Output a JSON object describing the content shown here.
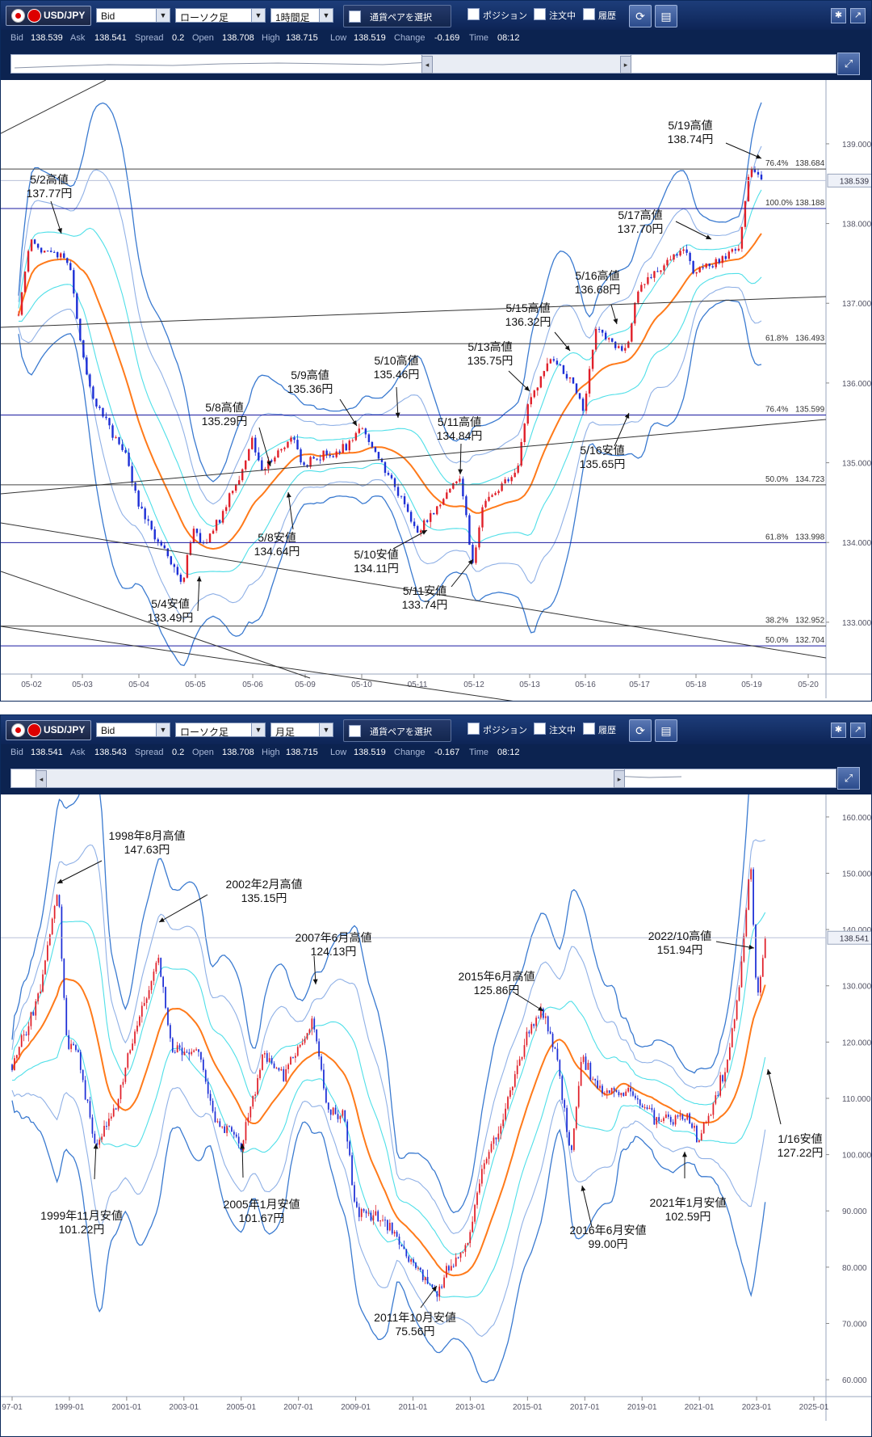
{
  "top": {
    "toolbar": {
      "pair": "USD/JPY",
      "price_type": "Bid",
      "chart_type": "ローソク足",
      "timeframe": "1時間足",
      "pair_select": "通貨ペアを選択",
      "position": "ポジション",
      "orders": "注文中",
      "history": "履歴"
    },
    "info": {
      "bid_k": "Bid",
      "bid": "138.539",
      "ask_k": "Ask",
      "ask": "138.541",
      "spread_k": "Spread",
      "spread": "0.2",
      "open_k": "Open",
      "open": "138.708",
      "high_k": "High",
      "high": "138.715",
      "low_k": "Low",
      "low": "138.519",
      "change_k": "Change",
      "change": "-0.169",
      "time_k": "Time",
      "time": "08:12"
    },
    "current_price": "138.539"
  },
  "bottom": {
    "toolbar": {
      "pair": "USD/JPY",
      "price_type": "Bid",
      "chart_type": "ローソク足",
      "timeframe": "月足",
      "pair_select": "通貨ペアを選択",
      "position": "ポジション",
      "orders": "注文中",
      "history": "履歴"
    },
    "info": {
      "bid_k": "Bid",
      "bid": "138.541",
      "ask_k": "Ask",
      "ask": "138.543",
      "spread_k": "Spread",
      "spread": "0.2",
      "open_k": "Open",
      "open": "138.708",
      "high_k": "High",
      "high": "138.715",
      "low_k": "Low",
      "low": "138.519",
      "change_k": "Change",
      "change": "-0.167",
      "time_k": "Time",
      "time": "08:12"
    },
    "current_price": "138.541"
  },
  "colors": {
    "toolbar": "#0c2350",
    "up": "#e0202a",
    "down": "#1d2fd6",
    "ma": "#ff7a1a",
    "band_outer": "#3a7ad0",
    "band_mid": "#8fb0e6",
    "band_inner": "#4fdfe8",
    "fib": "#444444",
    "fib_blue": "#1a1aa0"
  },
  "chart_data": [
    {
      "type": "candlestick",
      "timeframe": "1時間足",
      "x_ticks": [
        "05-02",
        "05-03",
        "05-04",
        "05-05",
        "05-06",
        "05-09",
        "05-10",
        "05-11",
        "05-12",
        "05-13",
        "05-16",
        "05-17",
        "05-18",
        "05-19",
        "05-20"
      ],
      "y_ticks": [
        "133.000",
        "134.000",
        "135.000",
        "136.000",
        "137.000",
        "138.000",
        "139.000"
      ],
      "ylim": [
        132.35,
        139.8
      ],
      "fib_levels": [
        {
          "pct": "76.4%",
          "value": "138.684",
          "color": "gray"
        },
        {
          "pct": "100.0%",
          "value": "138.188",
          "color": "blue"
        },
        {
          "pct": "61.8%",
          "value": "136.493",
          "color": "gray"
        },
        {
          "pct": "76.4%",
          "value": "135.599",
          "color": "blue"
        },
        {
          "pct": "50.0%",
          "value": "134.723",
          "color": "gray"
        },
        {
          "pct": "61.8%",
          "value": "133.998",
          "color": "blue"
        },
        {
          "pct": "38.2%",
          "value": "132.952",
          "color": "gray"
        },
        {
          "pct": "50.0%",
          "value": "132.704",
          "color": "blue"
        }
      ],
      "path": [
        [
          "05-02",
          136.85
        ],
        [
          "05-02",
          137.77
        ],
        [
          "05-03",
          137.5
        ],
        [
          "05-03",
          136.5
        ],
        [
          "05-03",
          135.8
        ],
        [
          "05-04",
          135.1
        ],
        [
          "05-04",
          134.5
        ],
        [
          "05-05",
          133.49
        ],
        [
          "05-05",
          134.2
        ],
        [
          "05-05",
          133.95
        ],
        [
          "05-06",
          134.8
        ],
        [
          "05-06",
          135.29
        ],
        [
          "05-06",
          134.9
        ],
        [
          "05-09",
          135.36
        ],
        [
          "05-09",
          135.0
        ],
        [
          "05-10",
          135.2
        ],
        [
          "05-10",
          135.46
        ],
        [
          "05-11",
          134.5
        ],
        [
          "05-11",
          134.11
        ],
        [
          "05-11",
          134.3
        ],
        [
          "05-12",
          134.84
        ],
        [
          "05-12",
          133.74
        ],
        [
          "05-12",
          134.5
        ],
        [
          "05-13",
          134.9
        ],
        [
          "05-13",
          135.75
        ],
        [
          "05-13",
          136.0
        ],
        [
          "05-13",
          136.32
        ],
        [
          "05-16",
          136.05
        ],
        [
          "05-16",
          135.65
        ],
        [
          "05-16",
          136.68
        ],
        [
          "05-17",
          136.4
        ],
        [
          "05-17",
          137.2
        ],
        [
          "05-18",
          137.7
        ],
        [
          "05-18",
          137.4
        ],
        [
          "05-19",
          137.7
        ],
        [
          "05-19",
          138.74
        ],
        [
          "05-19",
          138.54
        ]
      ],
      "annotations": [
        {
          "text": "5/2高値",
          "value": "137.77円"
        },
        {
          "text": "5/4安値",
          "value": "133.49円"
        },
        {
          "text": "5/8高値",
          "value": "135.29円"
        },
        {
          "text": "5/8安値",
          "value": "134.64円"
        },
        {
          "text": "5/9高値",
          "value": "135.36円"
        },
        {
          "text": "5/10高値",
          "value": "135.46円"
        },
        {
          "text": "5/10安値",
          "value": "134.11円"
        },
        {
          "text": "5/11高値",
          "value": "134.84円"
        },
        {
          "text": "5/11安値",
          "value": "133.74円"
        },
        {
          "text": "5/13高値",
          "value": "135.75円"
        },
        {
          "text": "5/15高値",
          "value": "136.32円"
        },
        {
          "text": "5/16安値",
          "value": "135.65円"
        },
        {
          "text": "5/16高値",
          "value": "136.68円"
        },
        {
          "text": "5/17高値",
          "value": "137.70円"
        },
        {
          "text": "5/19高値",
          "value": "138.74円"
        }
      ]
    },
    {
      "type": "candlestick",
      "timeframe": "月足",
      "x_ticks": [
        "97-01",
        "1999-01",
        "2001-01",
        "2003-01",
        "2005-01",
        "2007-01",
        "2009-01",
        "2011-01",
        "2013-01",
        "2015-01",
        "2017-01",
        "2019-01",
        "2021-01",
        "2023-01",
        "2025-01"
      ],
      "y_ticks": [
        "60.000",
        "70.000",
        "80.000",
        "90.000",
        "100.000",
        "110.000",
        "120.000",
        "130.000",
        "140.000",
        "150.000",
        "160.000"
      ],
      "ylim": [
        57,
        164
      ],
      "path": [
        [
          1997.0,
          116
        ],
        [
          1997.6,
          124
        ],
        [
          1998.0,
          130
        ],
        [
          1998.6,
          147.63
        ],
        [
          1998.9,
          120
        ],
        [
          1999.3,
          118
        ],
        [
          1999.9,
          101.22
        ],
        [
          2000.6,
          108
        ],
        [
          2001.2,
          120
        ],
        [
          2002.1,
          135.15
        ],
        [
          2002.6,
          118
        ],
        [
          2003.5,
          118
        ],
        [
          2004.1,
          106
        ],
        [
          2004.9,
          103
        ],
        [
          2005.0,
          101.67
        ],
        [
          2005.8,
          118
        ],
        [
          2006.5,
          114
        ],
        [
          2007.5,
          124.13
        ],
        [
          2008.0,
          108
        ],
        [
          2008.6,
          107
        ],
        [
          2009.0,
          90
        ],
        [
          2009.8,
          89
        ],
        [
          2010.5,
          85
        ],
        [
          2010.9,
          81
        ],
        [
          2011.8,
          75.56
        ],
        [
          2012.3,
          80
        ],
        [
          2012.9,
          84
        ],
        [
          2013.4,
          98
        ],
        [
          2014.0,
          104
        ],
        [
          2014.9,
          120
        ],
        [
          2015.5,
          125.86
        ],
        [
          2016.0,
          118
        ],
        [
          2016.5,
          99.0
        ],
        [
          2016.9,
          117
        ],
        [
          2017.6,
          111
        ],
        [
          2018.5,
          111
        ],
        [
          2019.6,
          106
        ],
        [
          2020.5,
          107
        ],
        [
          2021.0,
          102.59
        ],
        [
          2021.9,
          115
        ],
        [
          2022.4,
          130
        ],
        [
          2022.8,
          151.94
        ],
        [
          2023.0,
          127.22
        ],
        [
          2023.3,
          138.54
        ]
      ],
      "annotations": [
        {
          "text": "1998年8月高値",
          "value": "147.63円"
        },
        {
          "text": "1999年11月安値",
          "value": "101.22円"
        },
        {
          "text": "2002年2月高値",
          "value": "135.15円"
        },
        {
          "text": "2005年1月安値",
          "value": "101.67円"
        },
        {
          "text": "2007年6月高値",
          "value": "124.13円"
        },
        {
          "text": "2011年10月安値",
          "value": "75.56円"
        },
        {
          "text": "2015年6月高値",
          "value": "125.86円"
        },
        {
          "text": "2016年6月安値",
          "value": "99.00円"
        },
        {
          "text": "2021年1月安値",
          "value": "102.59円"
        },
        {
          "text": "2022/10高値",
          "value": "151.94円"
        },
        {
          "text": "1/16安値",
          "value": "127.22円"
        }
      ]
    }
  ]
}
